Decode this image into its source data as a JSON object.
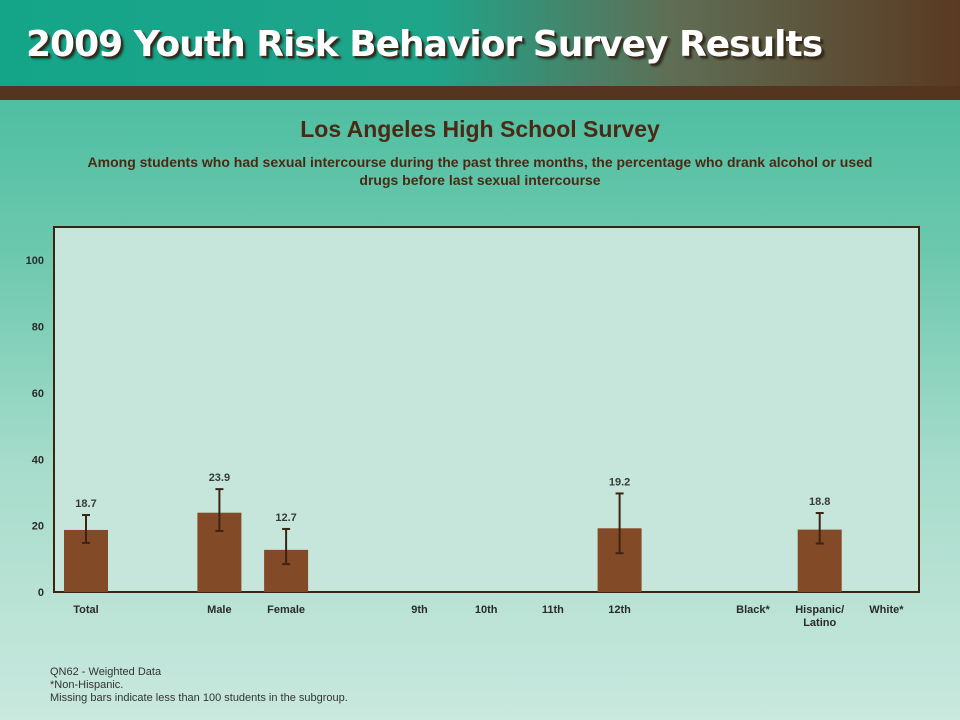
{
  "header": {
    "title": "2009 Youth Risk Behavior Survey Results"
  },
  "chart_data": {
    "type": "bar",
    "title": "Los Angeles High School Survey",
    "subtitle": "Among students who had sexual intercourse during the past three months, the percentage who drank alcohol or used drugs before last sexual intercourse",
    "categories": [
      "Total",
      "",
      "Male",
      "Female",
      "",
      "9th",
      "10th",
      "11th",
      "12th",
      "",
      "Black*",
      "Hispanic/\nLatino",
      "White*"
    ],
    "values": [
      18.7,
      null,
      23.9,
      12.7,
      null,
      null,
      null,
      null,
      19.2,
      null,
      null,
      18.8,
      null
    ],
    "value_labels": [
      "18.7",
      "",
      "23.9",
      "12.7",
      "",
      "",
      "",
      "",
      "19.2",
      "",
      "",
      "18.8",
      ""
    ],
    "error_bars": [
      [
        14.8,
        23.2
      ],
      null,
      [
        18.4,
        31.0
      ],
      [
        8.4,
        19.0
      ],
      null,
      null,
      null,
      null,
      [
        11.7,
        29.7
      ],
      null,
      null,
      [
        14.6,
        23.8
      ],
      null
    ],
    "ylim": [
      0,
      110
    ],
    "yticks": [
      0,
      20,
      40,
      60,
      80,
      100
    ],
    "xlabel": "",
    "ylabel": "",
    "colors": {
      "bar": "#834a28",
      "error": "#3b2412",
      "plot_bg": "#c6e6dc",
      "frame": "#3b2412"
    }
  },
  "footnotes": {
    "line1": "QN62 - Weighted Data",
    "line2": "*Non-Hispanic.",
    "line3": "Missing bars indicate less than 100 students in the subgroup."
  }
}
